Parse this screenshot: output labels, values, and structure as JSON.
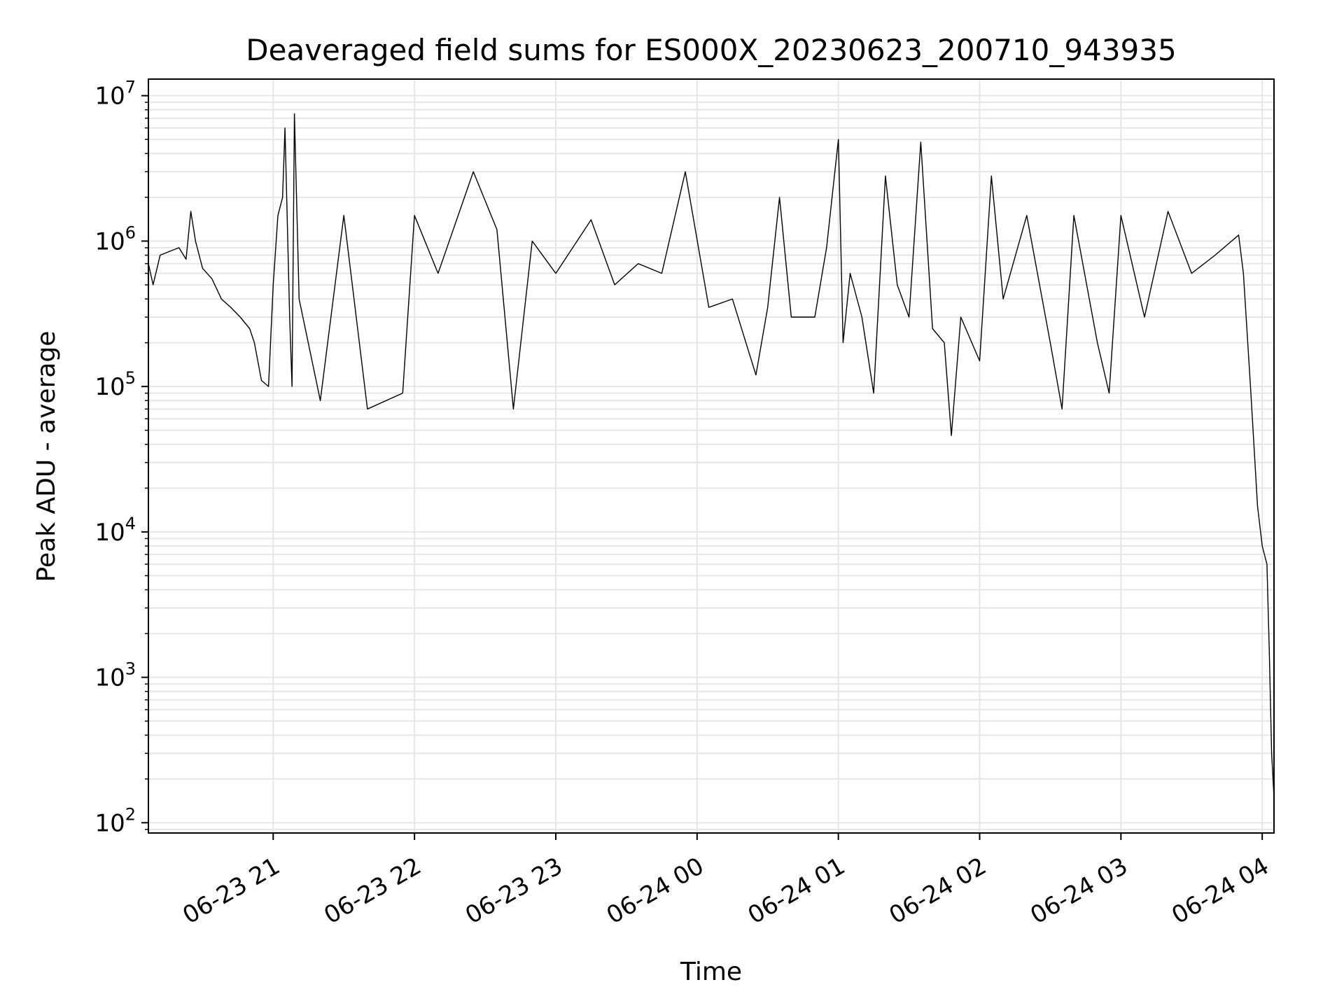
{
  "chart_data": {
    "type": "line",
    "title": "Deaveraged field sums for ES000X_20230623_200710_943935",
    "xlabel": "Time",
    "ylabel": "Peak ADU - average",
    "yscale": "log",
    "grid": true,
    "line_color": "#000000",
    "grid_color": "#e6e6e6",
    "xlim": [
      "06-23 20:07",
      "06-24 04:05"
    ],
    "ylim": [
      85,
      13000000
    ],
    "x_ticks": [
      "06-23 21",
      "06-23 22",
      "06-23 23",
      "06-24 00",
      "06-24 01",
      "06-24 02",
      "06-24 03",
      "06-24 04"
    ],
    "y_tick_base": "10",
    "y_tick_exponents": [
      "2",
      "3",
      "4",
      "5",
      "6",
      "7"
    ],
    "series": [
      {
        "points": [
          [
            "06-23 20:07",
            700000
          ],
          [
            "06-23 20:09",
            500000
          ],
          [
            "06-23 20:12",
            800000
          ],
          [
            "06-23 20:16",
            850000
          ],
          [
            "06-23 20:20",
            900000
          ],
          [
            "06-23 20:23",
            750000
          ],
          [
            "06-23 20:25",
            1600000
          ],
          [
            "06-23 20:27",
            1000000
          ],
          [
            "06-23 20:30",
            650000
          ],
          [
            "06-23 20:34",
            550000
          ],
          [
            "06-23 20:38",
            400000
          ],
          [
            "06-23 20:42",
            350000
          ],
          [
            "06-23 20:46",
            300000
          ],
          [
            "06-23 20:50",
            250000
          ],
          [
            "06-23 20:52",
            200000
          ],
          [
            "06-23 20:55",
            110000
          ],
          [
            "06-23 20:58",
            100000
          ],
          [
            "06-23 21:00",
            500000
          ],
          [
            "06-23 21:02",
            1500000
          ],
          [
            "06-23 21:04",
            2000000
          ],
          [
            "06-23 21:05",
            6000000
          ],
          [
            "06-23 21:07",
            300000
          ],
          [
            "06-23 21:08",
            100000
          ],
          [
            "06-23 21:09",
            7500000
          ],
          [
            "06-23 21:11",
            400000
          ],
          [
            "06-23 21:20",
            80000
          ],
          [
            "06-23 21:30",
            1500000
          ],
          [
            "06-23 21:40",
            70000
          ],
          [
            "06-23 21:55",
            90000
          ],
          [
            "06-23 22:00",
            1500000
          ],
          [
            "06-23 22:10",
            600000
          ],
          [
            "06-23 22:25",
            3000000
          ],
          [
            "06-23 22:35",
            1200000
          ],
          [
            "06-23 22:42",
            70000
          ],
          [
            "06-23 22:50",
            1000000
          ],
          [
            "06-23 23:00",
            600000
          ],
          [
            "06-23 23:15",
            1400000
          ],
          [
            "06-23 23:25",
            500000
          ],
          [
            "06-23 23:35",
            700000
          ],
          [
            "06-23 23:45",
            600000
          ],
          [
            "06-23 23:55",
            3000000
          ],
          [
            "06-24 00:05",
            350000
          ],
          [
            "06-24 00:15",
            400000
          ],
          [
            "06-24 00:25",
            120000
          ],
          [
            "06-24 00:30",
            350000
          ],
          [
            "06-24 00:35",
            2000000
          ],
          [
            "06-24 00:40",
            300000
          ],
          [
            "06-24 00:50",
            300000
          ],
          [
            "06-24 00:55",
            900000
          ],
          [
            "06-24 01:00",
            5000000
          ],
          [
            "06-24 01:02",
            200000
          ],
          [
            "06-24 01:05",
            600000
          ],
          [
            "06-24 01:10",
            300000
          ],
          [
            "06-24 01:15",
            90000
          ],
          [
            "06-24 01:20",
            2800000
          ],
          [
            "06-24 01:25",
            500000
          ],
          [
            "06-24 01:30",
            300000
          ],
          [
            "06-24 01:35",
            4800000
          ],
          [
            "06-24 01:40",
            250000
          ],
          [
            "06-24 01:45",
            200000
          ],
          [
            "06-24 01:48",
            46000
          ],
          [
            "06-24 01:52",
            300000
          ],
          [
            "06-24 02:00",
            150000
          ],
          [
            "06-24 02:05",
            2800000
          ],
          [
            "06-24 02:10",
            400000
          ],
          [
            "06-24 02:20",
            1500000
          ],
          [
            "06-24 02:30",
            200000
          ],
          [
            "06-24 02:35",
            70000
          ],
          [
            "06-24 02:40",
            1500000
          ],
          [
            "06-24 02:50",
            200000
          ],
          [
            "06-24 02:55",
            90000
          ],
          [
            "06-24 03:00",
            1500000
          ],
          [
            "06-24 03:10",
            300000
          ],
          [
            "06-24 03:20",
            1600000
          ],
          [
            "06-24 03:30",
            600000
          ],
          [
            "06-24 03:40",
            800000
          ],
          [
            "06-24 03:50",
            1100000
          ],
          [
            "06-24 03:52",
            600000
          ],
          [
            "06-24 03:55",
            100000
          ],
          [
            "06-24 03:58",
            15000
          ],
          [
            "06-24 04:00",
            8000
          ],
          [
            "06-24 04:02",
            6000
          ],
          [
            "06-24 04:03",
            1500
          ],
          [
            "06-24 04:04",
            300
          ],
          [
            "06-24 04:05",
            150
          ]
        ]
      }
    ]
  }
}
